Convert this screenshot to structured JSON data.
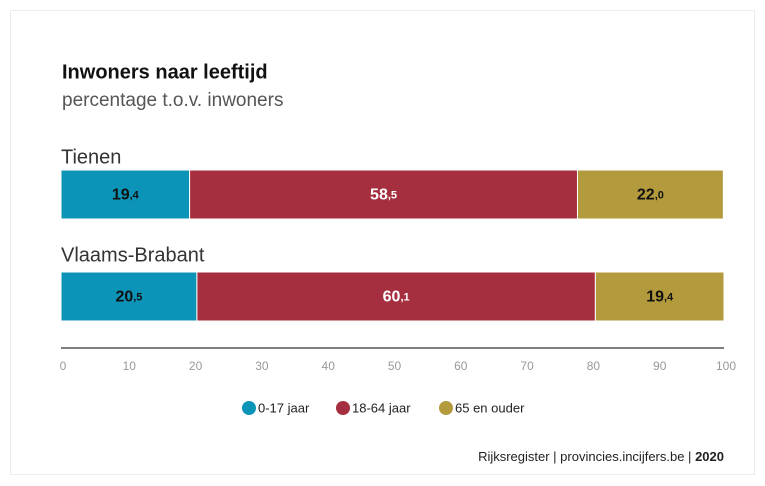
{
  "chart_data": {
    "type": "stacked-bar-horizontal",
    "title": "Inwoners naar leeftijd",
    "subtitle": "percentage t.o.v. inwoners",
    "categories": [
      "Tienen",
      "Vlaams-Brabant"
    ],
    "series": [
      {
        "name": "0-17 jaar",
        "color": "#0c94b8",
        "values": [
          19.4,
          20.5
        ],
        "value_labels": [
          "19,4",
          "20,5"
        ]
      },
      {
        "name": "18-64 jaar",
        "color": "#a62f3f",
        "values": [
          58.5,
          60.1
        ],
        "value_labels": [
          "58,5",
          "60,1"
        ]
      },
      {
        "name": "65 en ouder",
        "color": "#b39a3c",
        "values": [
          22.0,
          19.4
        ],
        "value_labels": [
          "22,0",
          "19,4"
        ]
      }
    ],
    "xlim": [
      0,
      100
    ],
    "xticks": [
      0,
      10,
      20,
      30,
      40,
      50,
      60,
      70,
      80,
      90,
      100
    ],
    "source": "Rijksregister | provincies.incijfers.be |",
    "source_year": "2020"
  }
}
